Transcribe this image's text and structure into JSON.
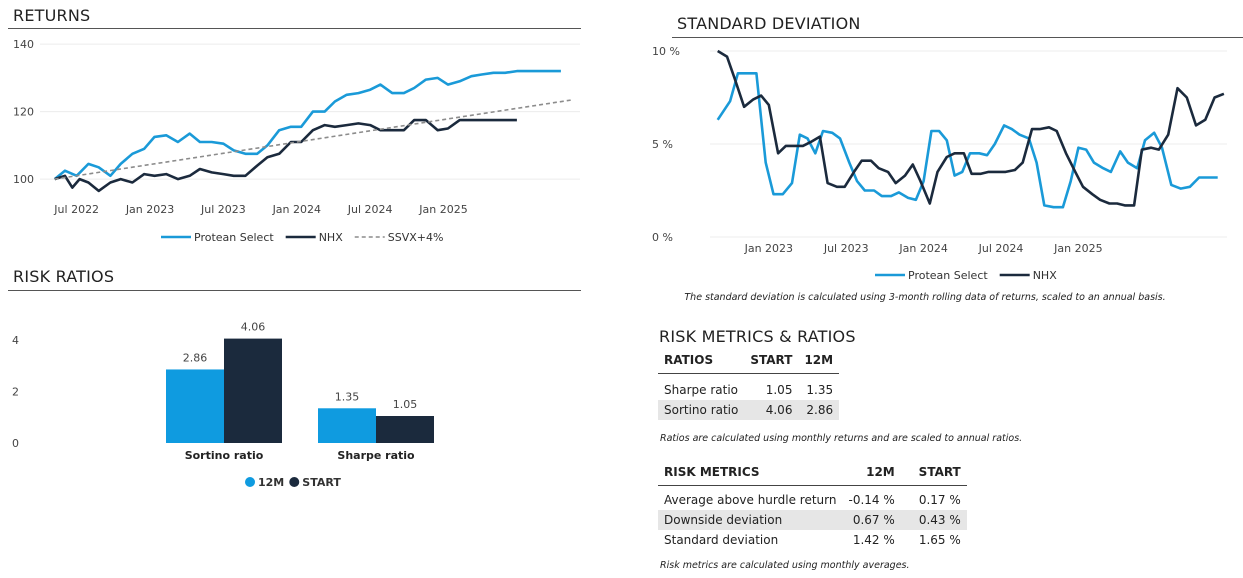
{
  "colors": {
    "protean": "#1a9ad8",
    "nhx": "#1b2a3d",
    "ssvx": "#8c8c8c",
    "bar_12m": "#0f9be0",
    "bar_start": "#1b2a3d"
  },
  "returns": {
    "title": "RETURNS",
    "chart_data": {
      "type": "line",
      "title": "RETURNS",
      "ylim": [
        95,
        143
      ],
      "yticks": [
        100,
        120,
        140
      ],
      "xticks": [
        "Jul 2022",
        "Jan 2023",
        "Jul 2023",
        "Jan 2024",
        "Jul 2024",
        "Jan 2025"
      ],
      "xlim": [
        2022.25,
        2025.93
      ],
      "legend_position": "bottom",
      "series": [
        {
          "name": "Protean Select",
          "color": "#1a9ad8",
          "x": [
            2022.35,
            2022.42,
            2022.5,
            2022.58,
            2022.65,
            2022.73,
            2022.8,
            2022.88,
            2022.96,
            2023.03,
            2023.11,
            2023.19,
            2023.27,
            2023.34,
            2023.42,
            2023.5,
            2023.57,
            2023.65,
            2023.73,
            2023.8,
            2023.88,
            2023.96,
            2024.03,
            2024.11,
            2024.19,
            2024.26,
            2024.34,
            2024.42,
            2024.5,
            2024.57,
            2024.65,
            2024.73,
            2024.8,
            2024.88,
            2024.96,
            2025.03,
            2025.11,
            2025.19,
            2025.26,
            2025.34,
            2025.42,
            2025.5,
            2025.57,
            2025.65,
            2025.73,
            2025.8
          ],
          "y": [
            100,
            102.5,
            101,
            104.5,
            103.5,
            101,
            104.5,
            107.5,
            109,
            112.5,
            113,
            111,
            113.5,
            111,
            111,
            110.5,
            108.5,
            107.5,
            107.5,
            110,
            114.5,
            115.5,
            115.5,
            120,
            120,
            123,
            125,
            125.5,
            126.5,
            128,
            125.5,
            125.5,
            127,
            129.5,
            130,
            128,
            129,
            130.5,
            131,
            131.5,
            131.5,
            132,
            132,
            132,
            132,
            132
          ]
        },
        {
          "name": "NHX",
          "color": "#1b2a3d",
          "x": [
            2022.35,
            2022.42,
            2022.47,
            2022.52,
            2022.58,
            2022.65,
            2022.73,
            2022.8,
            2022.88,
            2022.96,
            2023.03,
            2023.11,
            2023.19,
            2023.27,
            2023.34,
            2023.42,
            2023.5,
            2023.57,
            2023.65,
            2023.73,
            2023.8,
            2023.88,
            2023.96,
            2024.03,
            2024.11,
            2024.19,
            2024.26,
            2024.34,
            2024.42,
            2024.5,
            2024.57,
            2024.65,
            2024.73,
            2024.8,
            2024.88,
            2024.96,
            2025.03,
            2025.11,
            2025.19,
            2025.26,
            2025.34,
            2025.42,
            2025.5
          ],
          "y": [
            100,
            101,
            97.5,
            100,
            99,
            96.5,
            99,
            100,
            99,
            101.5,
            101,
            101.5,
            100,
            101,
            103,
            102,
            101.5,
            101,
            101,
            104,
            106.5,
            107.5,
            111,
            111,
            114.5,
            116,
            115.5,
            116,
            116.5,
            116,
            114.5,
            114.5,
            114.5,
            117.5,
            117.5,
            114.5,
            115,
            117.5,
            117.5,
            117.5,
            117.5,
            117.5,
            117.5
          ]
        },
        {
          "name": "SSVX+4%",
          "color": "#8c8c8c",
          "dashed": true,
          "x": [
            2022.35,
            2025.88
          ],
          "y": [
            100,
            123.5
          ]
        }
      ]
    }
  },
  "risk_ratios": {
    "title": "RISK RATIOS",
    "chart_data": {
      "type": "bar",
      "categories": [
        "Sortino ratio",
        "Sharpe ratio"
      ],
      "ylim": [
        0,
        4.2
      ],
      "yticks": [
        0,
        2,
        4
      ],
      "legend_position": "bottom",
      "series": [
        {
          "name": "12M",
          "color": "#0f9be0",
          "values": [
            2.86,
            1.35
          ],
          "labels": [
            "2.86",
            "1.35"
          ]
        },
        {
          "name": "START",
          "color": "#1b2a3d",
          "values": [
            4.06,
            1.05
          ],
          "labels": [
            "4.06",
            "1.05"
          ]
        }
      ]
    }
  },
  "std_dev": {
    "title": "STANDARD DEVIATION",
    "note": "The standard deviation is calculated using 3-month rolling data of returns, scaled to an annual basis.",
    "chart_data": {
      "type": "line",
      "ylim": [
        0,
        10
      ],
      "yticks": [
        0,
        5,
        10
      ],
      "ytick_labels": [
        "0 %",
        "5 %",
        "10 %"
      ],
      "xticks": [
        "Jan 2023",
        "Jul 2023",
        "Jan 2024",
        "Jul 2024",
        "Jan 2025"
      ],
      "xlim": [
        2022.62,
        2025.96
      ],
      "legend_position": "bottom",
      "series": [
        {
          "name": "Protean Select",
          "color": "#1a9ad8",
          "x": [
            2022.67,
            2022.75,
            2022.8,
            2022.86,
            2022.92,
            2022.98,
            2023.03,
            2023.09,
            2023.15,
            2023.2,
            2023.25,
            2023.3,
            2023.35,
            2023.41,
            2023.46,
            2023.52,
            2023.57,
            2023.62,
            2023.68,
            2023.73,
            2023.79,
            2023.84,
            2023.9,
            2023.95,
            2024.0,
            2024.05,
            2024.1,
            2024.15,
            2024.2,
            2024.25,
            2024.3,
            2024.36,
            2024.41,
            2024.46,
            2024.52,
            2024.57,
            2024.62,
            2024.68,
            2024.73,
            2024.78,
            2024.84,
            2024.9,
            2024.95,
            2025.0,
            2025.05,
            2025.1,
            2025.16,
            2025.21,
            2025.27,
            2025.32,
            2025.38,
            2025.43,
            2025.49,
            2025.54,
            2025.6,
            2025.66,
            2025.72,
            2025.78,
            2025.84,
            2025.9
          ],
          "y": [
            6.3,
            7.3,
            8.8,
            8.8,
            8.8,
            4,
            2.3,
            2.3,
            2.9,
            5.5,
            5.3,
            4.5,
            5.7,
            5.6,
            5.3,
            4,
            3,
            2.5,
            2.5,
            2.2,
            2.2,
            2.4,
            2.1,
            2,
            3,
            5.7,
            5.7,
            5.2,
            3.3,
            3.5,
            4.5,
            4.5,
            4.4,
            5,
            6,
            5.8,
            5.5,
            5.3,
            4,
            1.7,
            1.6,
            1.6,
            3,
            4.8,
            4.7,
            4,
            3.7,
            3.5,
            4.6,
            4,
            3.7,
            5.2,
            5.6,
            4.8,
            2.8,
            2.6,
            2.7,
            3.2,
            3.2,
            3.2
          ]
        },
        {
          "name": "NHX",
          "color": "#1b2a3d",
          "x": [
            2022.67,
            2022.73,
            2022.78,
            2022.84,
            2022.9,
            2022.95,
            2023.0,
            2023.06,
            2023.11,
            2023.17,
            2023.22,
            2023.27,
            2023.33,
            2023.38,
            2023.44,
            2023.49,
            2023.55,
            2023.6,
            2023.66,
            2023.71,
            2023.77,
            2023.82,
            2023.88,
            2023.93,
            2023.98,
            2024.04,
            2024.09,
            2024.15,
            2024.2,
            2024.26,
            2024.31,
            2024.37,
            2024.42,
            2024.48,
            2024.53,
            2024.59,
            2024.64,
            2024.7,
            2024.75,
            2024.81,
            2024.86,
            2024.92,
            2024.98,
            2025.03,
            2025.09,
            2025.14,
            2025.2,
            2025.25,
            2025.3,
            2025.36,
            2025.41,
            2025.47,
            2025.52,
            2025.58,
            2025.64,
            2025.7,
            2025.76,
            2025.82,
            2025.88,
            2025.94
          ],
          "y": [
            10,
            9.7,
            8.5,
            7,
            7.4,
            7.6,
            7.1,
            4.5,
            4.9,
            4.9,
            4.9,
            5.1,
            5.4,
            2.9,
            2.7,
            2.7,
            3.5,
            4.1,
            4.1,
            3.7,
            3.5,
            2.9,
            3.3,
            3.9,
            3,
            1.8,
            3.5,
            4.3,
            4.5,
            4.5,
            3.4,
            3.4,
            3.5,
            3.5,
            3.5,
            3.6,
            4,
            5.8,
            5.8,
            5.9,
            5.7,
            4.5,
            3.5,
            2.7,
            2.3,
            2,
            1.8,
            1.8,
            1.7,
            1.7,
            4.7,
            4.8,
            4.7,
            5.5,
            8,
            7.5,
            6,
            6.3,
            7.5,
            7.7
          ]
        }
      ]
    }
  },
  "risk_metrics": {
    "title": "RISK METRICS & RATIOS",
    "ratios": {
      "headers": [
        "RATIOS",
        "START",
        "12M"
      ],
      "rows": [
        {
          "label": "Sharpe ratio",
          "start": "1.05",
          "m12": "1.35"
        },
        {
          "label": "Sortino ratio",
          "start": "4.06",
          "m12": "2.86"
        }
      ],
      "note": "Ratios are calculated using monthly returns and are scaled to annual ratios."
    },
    "metrics": {
      "headers": [
        "RISK METRICS",
        "12M",
        "START"
      ],
      "rows": [
        {
          "label": "Average above hurdle return",
          "m12": "-0.14 %",
          "start": "0.17 %"
        },
        {
          "label": "Downside deviation",
          "m12": "0.67 %",
          "start": "0.43 %"
        },
        {
          "label": "Standard deviation",
          "m12": "1.42 %",
          "start": "1.65 %"
        }
      ],
      "note": "Risk metrics are calculated using monthly averages."
    }
  }
}
